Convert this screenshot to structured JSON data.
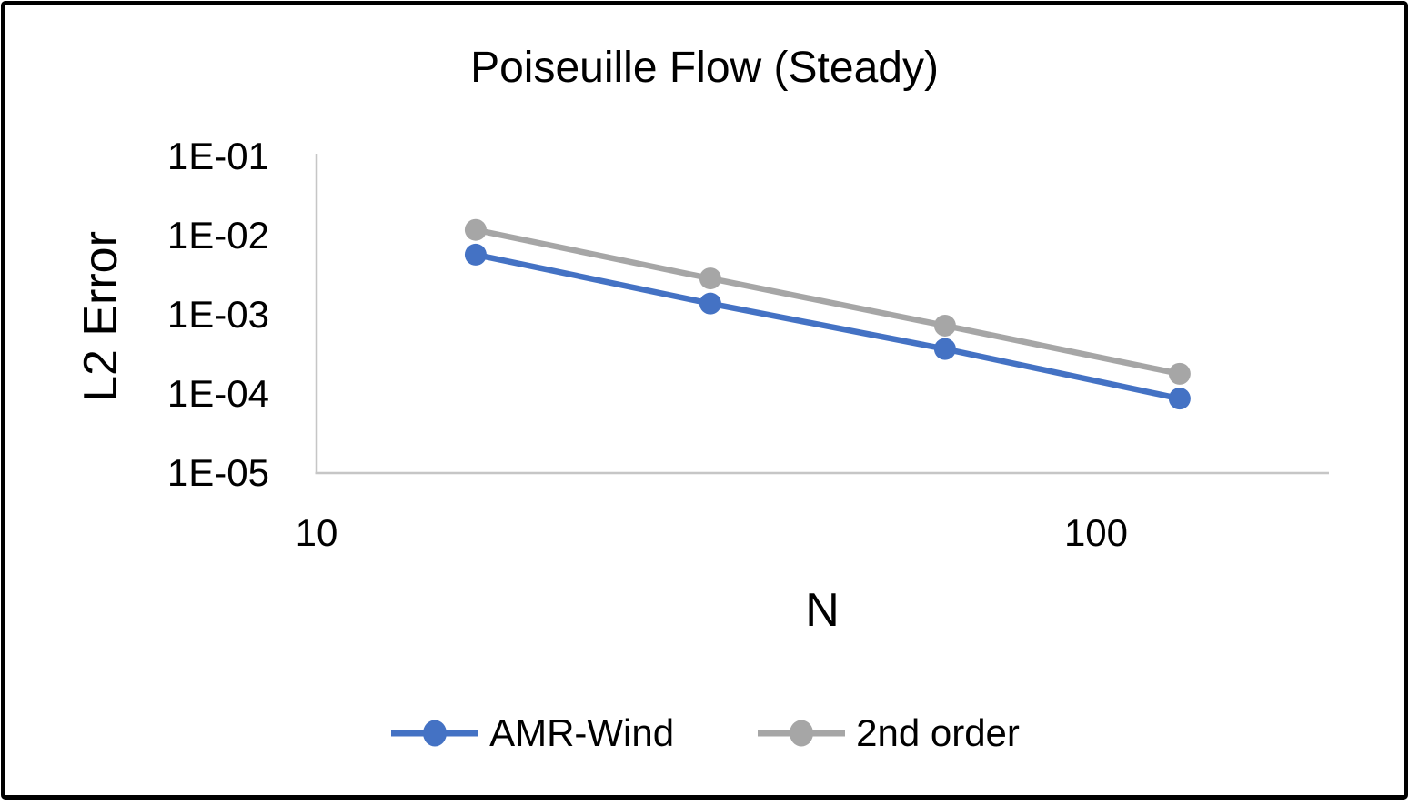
{
  "chart_data": {
    "type": "line",
    "title": "Poiseuille Flow (Steady)",
    "xlabel": "N",
    "ylabel": "L2 Error",
    "x_scale": "log",
    "y_scale": "log",
    "xlim": [
      10,
      200
    ],
    "ylim": [
      1e-05,
      0.1
    ],
    "grid": false,
    "legend_position": "bottom",
    "axis_color": "#C6C6C6",
    "text_color": "#000000",
    "xticks": [
      {
        "value": 10,
        "label": "10"
      },
      {
        "value": 100,
        "label": "100"
      }
    ],
    "yticks": [
      {
        "value": 0.1,
        "label": "1E-01"
      },
      {
        "value": 0.01,
        "label": "1E-02"
      },
      {
        "value": 0.001,
        "label": "1E-03"
      },
      {
        "value": 0.0001,
        "label": "1E-04"
      },
      {
        "value": 1e-05,
        "label": "1E-05"
      }
    ],
    "x": [
      16,
      32,
      64,
      128
    ],
    "series": [
      {
        "name": "AMR-Wind",
        "color": "#4472C4",
        "values": [
          0.0056,
          0.00135,
          0.00036,
          8.5e-05
        ]
      },
      {
        "name": "2nd order",
        "color": "#A6A6A6",
        "values": [
          0.0115,
          0.0028,
          0.00071,
          0.000175
        ]
      }
    ]
  }
}
